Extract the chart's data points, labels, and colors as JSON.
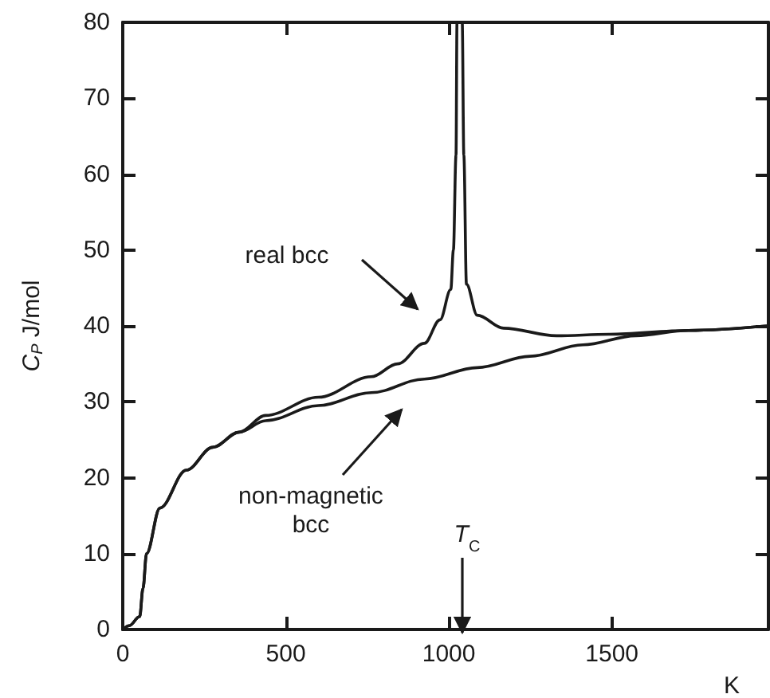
{
  "chart_data": {
    "type": "line",
    "xlabel": "K",
    "ylabel": "C$_{P}$ J/mol",
    "xlim": [
      0,
      1980
    ],
    "xticks": [
      0,
      500,
      1000,
      1500
    ],
    "ylim": [
      0,
      80
    ],
    "yticks": [
      0,
      10,
      20,
      30,
      40,
      50,
      60,
      70,
      80
    ],
    "grid": false,
    "marker": "none",
    "line_style": "solid",
    "series": [
      {
        "color": "#1a1a1a",
        "x": [
          0,
          20,
          52,
          62,
          73,
          114,
          195,
          276,
          357,
          438,
          600,
          762,
          843,
          925,
          973,
          1006,
          1014,
          1022,
          1025,
          1041,
          1046,
          1054,
          1087,
          1168,
          1330,
          1492,
          1735,
          1977
        ],
        "values": [
          0,
          0.5,
          1.7,
          5.4,
          10,
          16,
          21,
          24,
          26,
          28.2,
          30.6,
          33.3,
          35,
          37.7,
          40.8,
          44.8,
          50,
          62.5,
          80,
          80,
          62.5,
          45.5,
          41.4,
          39.7,
          38.7,
          38.9,
          39.4,
          40
        ]
      },
      {
        "color": "#1a1a1a",
        "x": [
          0,
          20,
          52,
          62,
          73,
          114,
          195,
          276,
          357,
          438,
          600,
          762,
          925,
          1087,
          1249,
          1411,
          1573,
          1735,
          1977
        ],
        "values": [
          0,
          0.5,
          1.7,
          5.4,
          10,
          16,
          21,
          24,
          26,
          27.5,
          29.5,
          31.2,
          33,
          34.5,
          36,
          37.5,
          38.7,
          39.4,
          40
        ]
      }
    ],
    "annotations": [
      "real bcc",
      "non-magnetic bcc",
      "T$_{C}$"
    ]
  }
}
